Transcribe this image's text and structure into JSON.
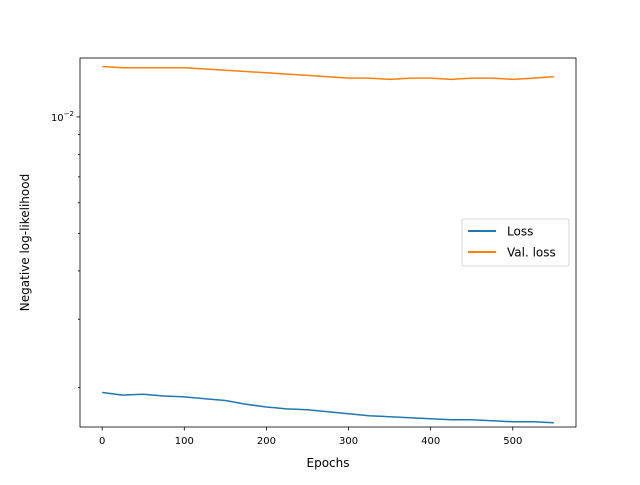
{
  "chart_data": {
    "type": "line",
    "title": "",
    "xlabel": "Epochs",
    "ylabel": "Negative log-likelihood",
    "xlim": [
      -27,
      577
    ],
    "ylim": [
      0.00158,
      0.0142
    ],
    "yscale": "log",
    "grid": false,
    "legend_position": "center-right",
    "x_ticks": [
      0,
      100,
      200,
      300,
      400,
      500
    ],
    "x_tick_labels": [
      "0",
      "100",
      "200",
      "300",
      "400",
      "500"
    ],
    "y_ticks": [
      0.01
    ],
    "y_tick_labels": [
      "10",
      "−2"
    ],
    "series": [
      {
        "name": "Loss",
        "color": "#1f77b4",
        "x": [
          0,
          25,
          50,
          75,
          100,
          125,
          150,
          175,
          200,
          225,
          250,
          275,
          300,
          325,
          350,
          375,
          400,
          425,
          450,
          475,
          500,
          525,
          550
        ],
        "y": [
          0.00194,
          0.00191,
          0.00192,
          0.0019,
          0.00189,
          0.00187,
          0.00185,
          0.00181,
          0.00178,
          0.00176,
          0.00175,
          0.00173,
          0.00171,
          0.00169,
          0.00168,
          0.00167,
          0.00166,
          0.00165,
          0.00165,
          0.00164,
          0.00163,
          0.00163,
          0.00162
        ]
      },
      {
        "name": "Val. loss",
        "color": "#ff7f0e",
        "x": [
          0,
          25,
          50,
          75,
          100,
          125,
          150,
          175,
          200,
          225,
          250,
          275,
          300,
          325,
          350,
          375,
          400,
          425,
          450,
          475,
          500,
          525,
          550
        ],
        "y": [
          0.0135,
          0.0134,
          0.0134,
          0.0134,
          0.0134,
          0.0133,
          0.0132,
          0.0131,
          0.013,
          0.0129,
          0.0128,
          0.0127,
          0.0126,
          0.0126,
          0.0125,
          0.0126,
          0.0126,
          0.0125,
          0.0126,
          0.0126,
          0.0125,
          0.0126,
          0.0127
        ]
      }
    ]
  }
}
